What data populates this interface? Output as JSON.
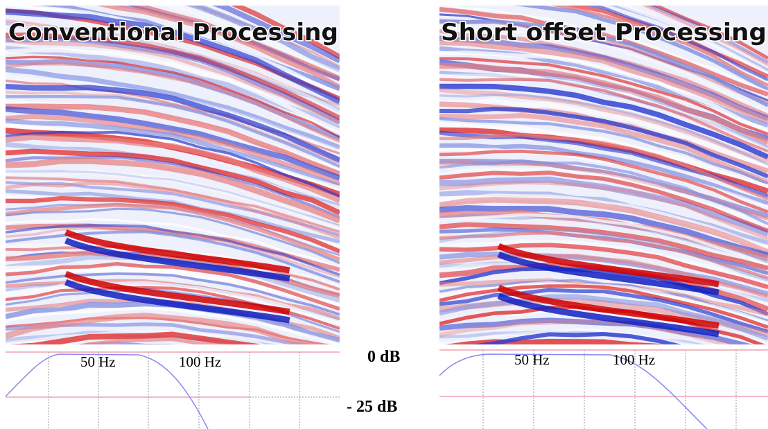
{
  "panels": [
    {
      "title": "Conventional Processing",
      "spectrum_labels": [
        "50 Hz",
        "100 Hz"
      ]
    },
    {
      "title": "Short offset Processing",
      "spectrum_labels": [
        "50 Hz",
        "100 Hz"
      ]
    }
  ],
  "db_labels": [
    "0 dB",
    "- 25 dB"
  ]
}
